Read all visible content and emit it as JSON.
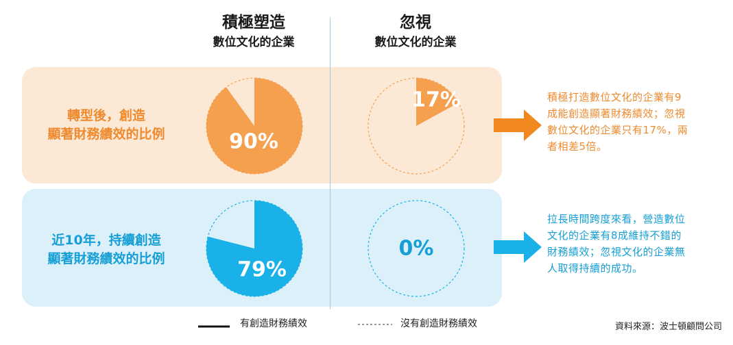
{
  "columns": [
    {
      "line1": "積極塑造",
      "line2": "數位文化的企業"
    },
    {
      "line1": "忽視",
      "line2": "數位文化的企業"
    }
  ],
  "rows": [
    {
      "label_lines": [
        "轉型後，創造",
        "顯著財務績效的比例"
      ]
    },
    {
      "label_lines": [
        "近10年，持續創造",
        "顯著財務績效的比例"
      ]
    }
  ],
  "notes": [
    {
      "lines": [
        "積極打造數位文化的企業有9",
        "成能創造顯著財務績效；忽視",
        "數位文化的企業只有17%，兩",
        "者相差5倍。"
      ]
    },
    {
      "lines": [
        "拉長時間跨度來看，營造數位",
        "文化的企業有8成維持不錯的",
        "財務績效；忽視文化的企業無",
        "人取得持續的成功。"
      ]
    }
  ],
  "legend": {
    "solid": "有創造財務績效",
    "dashed": "沒有創造財務績效"
  },
  "source": "資料來源：波士頓顧問公司",
  "colors": {
    "orange": "#f5a04e",
    "orange_text": "#ef8a2f",
    "blue": "#1ab1e8",
    "blue_text": "#159fd6"
  },
  "chart_data": [
    {
      "type": "pie",
      "title": "",
      "group": "積極塑造數位文化的企業",
      "row": "轉型後，創造顯著財務績效的比例",
      "values": [
        90,
        10
      ],
      "labels": [
        "有創造財務績效",
        "沒有創造財務績效"
      ],
      "value_label": "90%"
    },
    {
      "type": "pie",
      "title": "",
      "group": "忽視數位文化的企業",
      "row": "轉型後，創造顯著財務績效的比例",
      "values": [
        17,
        83
      ],
      "labels": [
        "有創造財務績效",
        "沒有創造財務績效"
      ],
      "value_label": "17%"
    },
    {
      "type": "pie",
      "title": "",
      "group": "積極塑造數位文化的企業",
      "row": "近10年，持續創造顯著財務績效的比例",
      "values": [
        79,
        21
      ],
      "labels": [
        "有創造財務績效",
        "沒有創造財務績效"
      ],
      "value_label": "79%"
    },
    {
      "type": "pie",
      "title": "",
      "group": "忽視數位文化的企業",
      "row": "近10年，持續創造顯著財務績效的比例",
      "values": [
        0,
        100
      ],
      "labels": [
        "有創造財務績效",
        "沒有創造財務績效"
      ],
      "value_label": "0%"
    }
  ]
}
